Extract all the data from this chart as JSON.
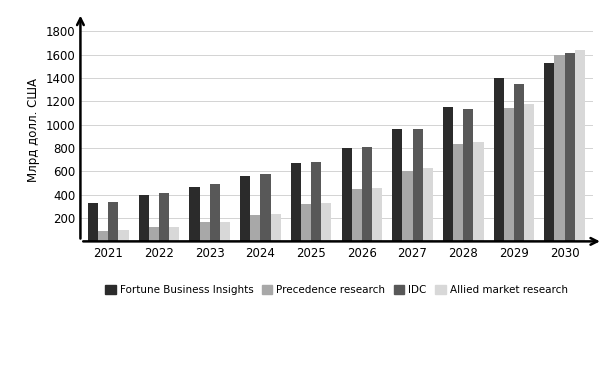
{
  "years": [
    2021,
    2022,
    2023,
    2024,
    2025,
    2026,
    2027,
    2028,
    2029,
    2030
  ],
  "series": {
    "Fortune Business Insights": [
      327,
      395,
      465,
      560,
      670,
      800,
      965,
      1150,
      1400,
      1530
    ],
    "Precedence research": [
      90,
      120,
      165,
      225,
      320,
      445,
      605,
      830,
      1145,
      1595
    ],
    "IDC": [
      335,
      410,
      490,
      575,
      680,
      805,
      960,
      1135,
      1350,
      1610
    ],
    "Allied market research": [
      95,
      125,
      165,
      235,
      330,
      455,
      625,
      855,
      1175,
      1640
    ]
  },
  "colors": {
    "Fortune Business Insights": "#2b2b2b",
    "Precedence research": "#a8a8a8",
    "IDC": "#585858",
    "Allied market research": "#d8d8d8"
  },
  "ylabel": "Млрд долл. США",
  "ylim": [
    0,
    1900
  ],
  "yticks": [
    0,
    200,
    400,
    600,
    800,
    1000,
    1200,
    1400,
    1600,
    1800
  ],
  "background_color": "#ffffff",
  "grid_color": "#cccccc",
  "bar_width": 0.2,
  "figsize": [
    6.13,
    3.67
  ],
  "dpi": 100
}
